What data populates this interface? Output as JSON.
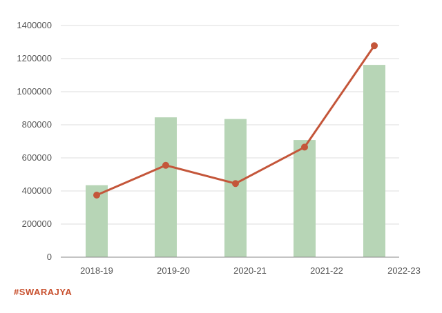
{
  "chart_data": {
    "type": "bar",
    "categories": [
      "2018-19",
      "2019-20",
      "2020-21",
      "2021-22",
      "2022-23"
    ],
    "series": [
      {
        "type": "bar",
        "values": [
          435000,
          845000,
          835000,
          708000,
          1162000
        ],
        "color": "#b7d5b6"
      },
      {
        "type": "line",
        "values": [
          375000,
          555000,
          445000,
          665000,
          1278000
        ],
        "color": "#c4563a"
      }
    ],
    "y_ticks": [
      "0",
      "200000",
      "400000",
      "600000",
      "800000",
      "1000000",
      "1200000",
      "1400000"
    ],
    "ylim": [
      0,
      1400000
    ],
    "grid": true,
    "title": "",
    "xlabel": "",
    "ylabel": ""
  },
  "watermark": "#SWARAJYA"
}
